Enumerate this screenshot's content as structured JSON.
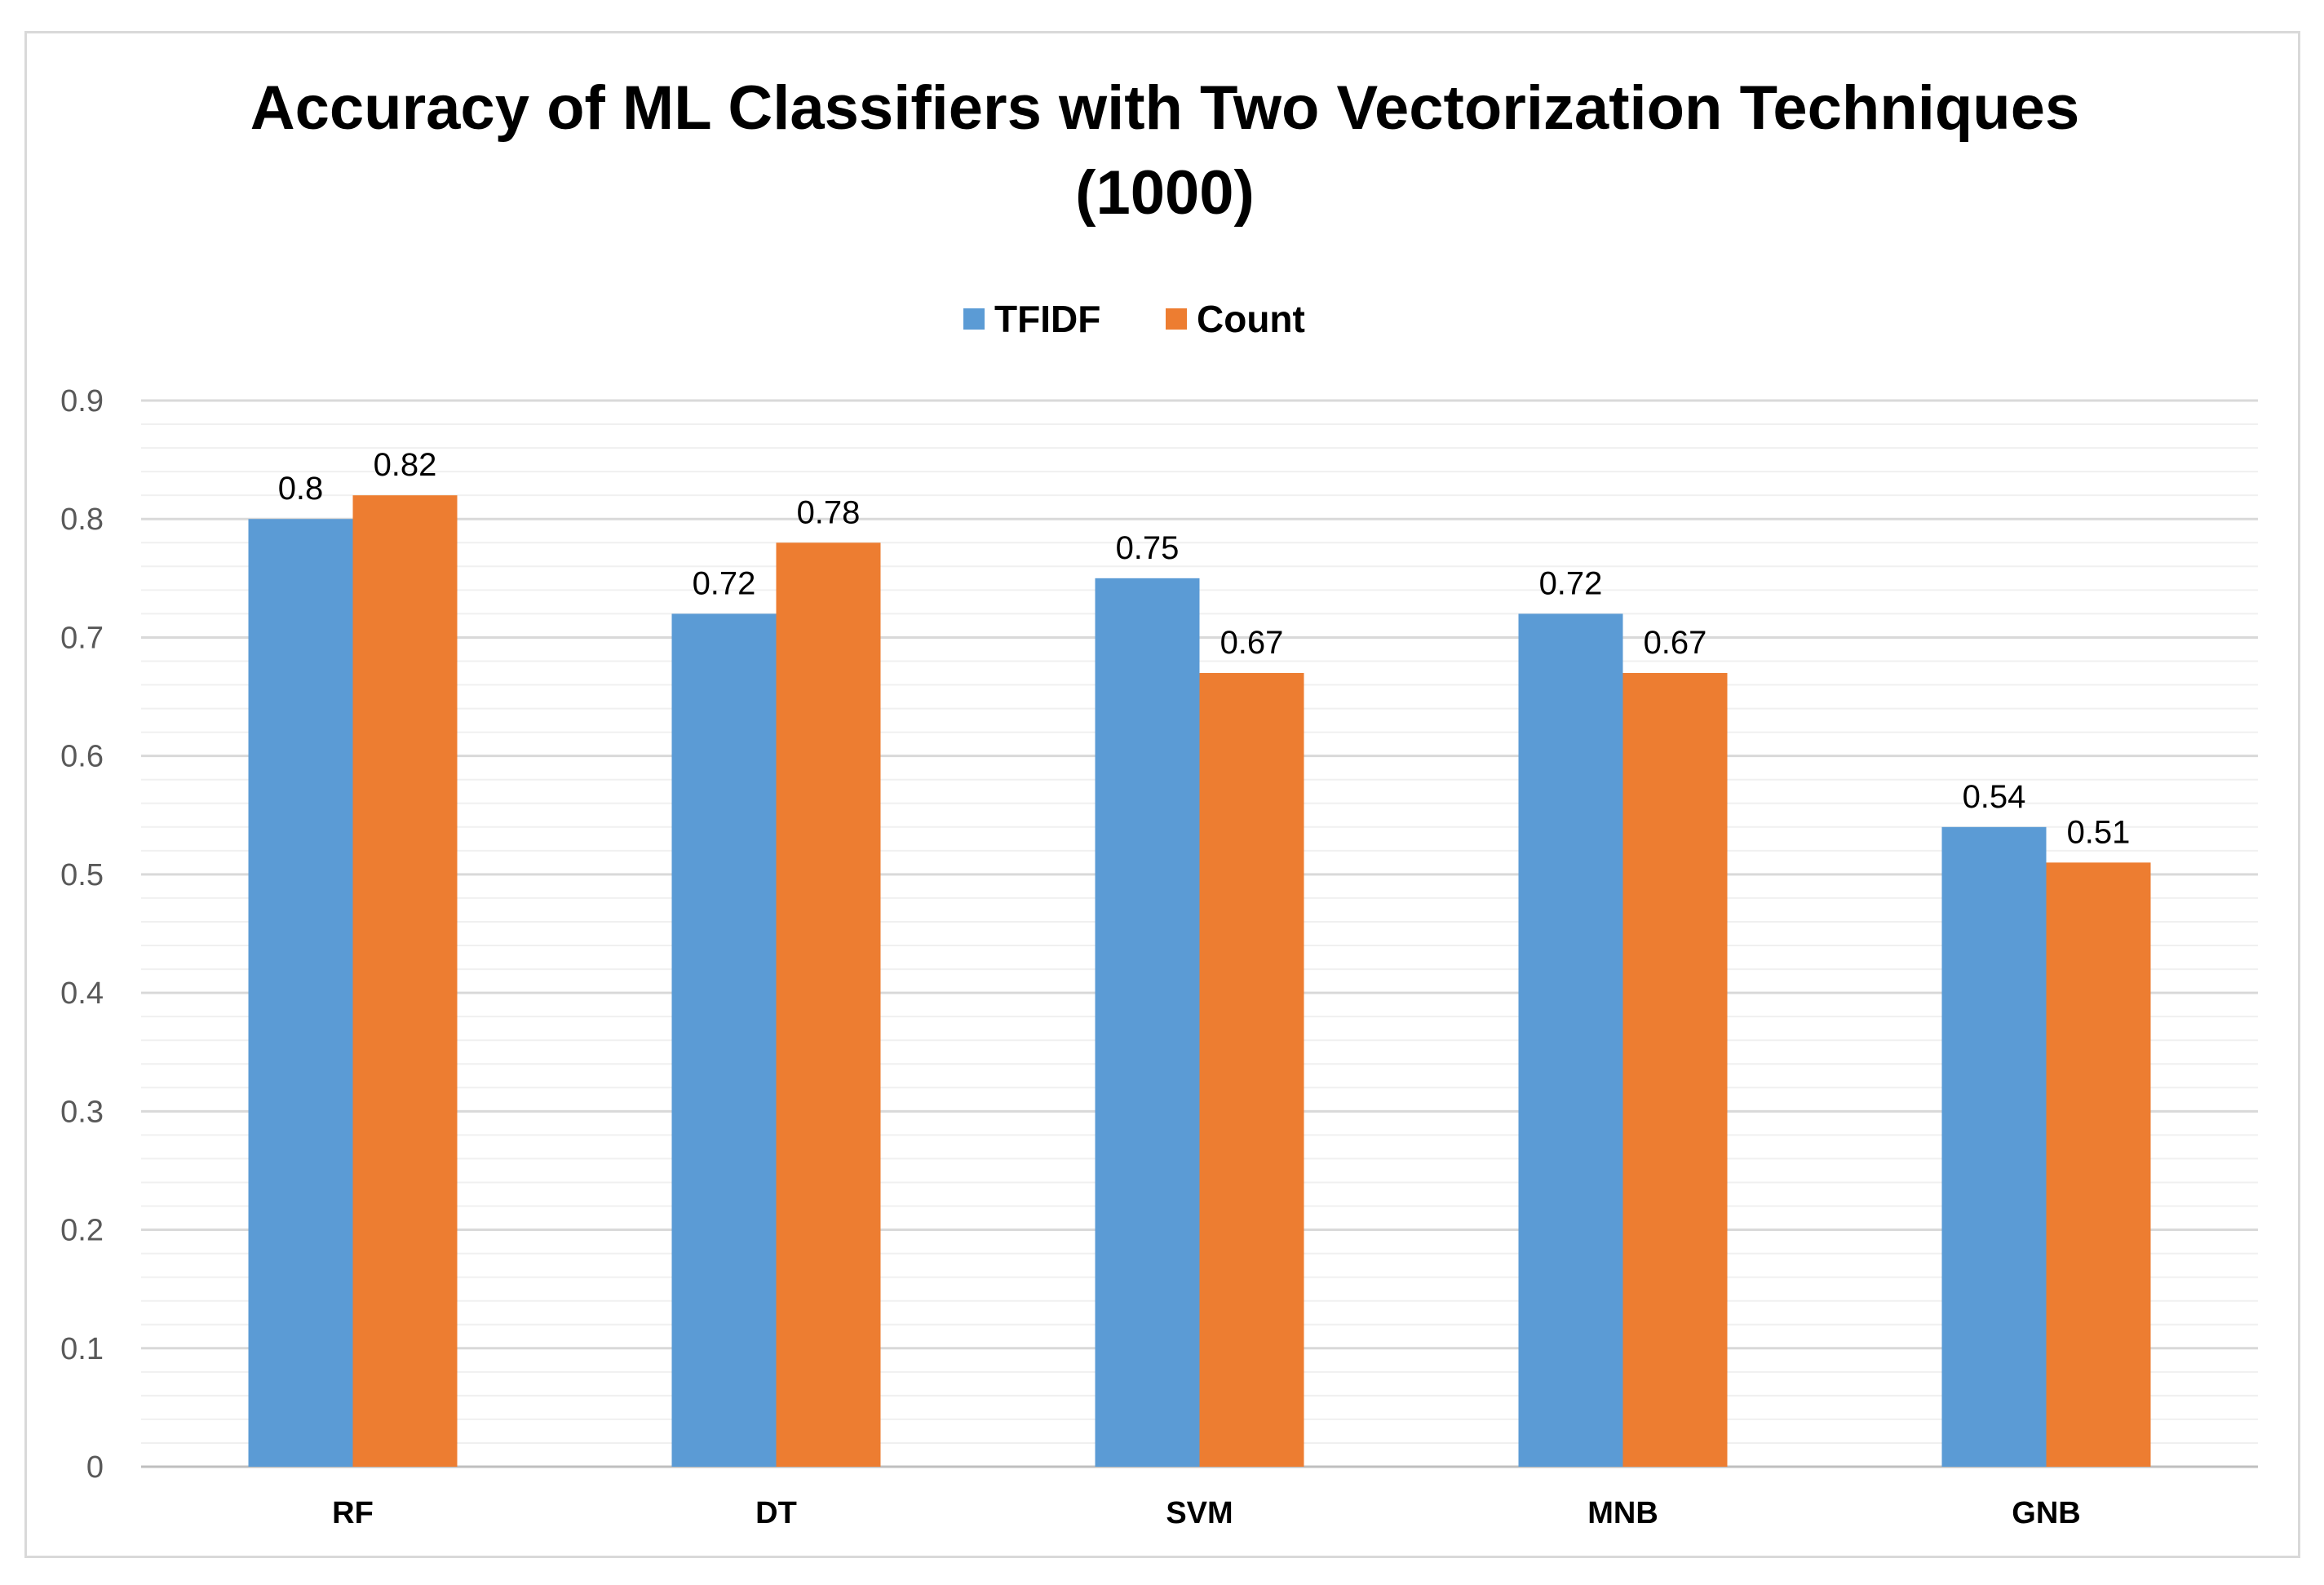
{
  "chart_data": {
    "type": "bar",
    "title_line1": "Accuracy of ML Classifiers with Two Vectorization Techniques",
    "title_line2": "(1000)",
    "categories": [
      "RF",
      "DT",
      "SVM",
      "MNB",
      "GNB"
    ],
    "series": [
      {
        "name": "TFIDF",
        "color": "#5b9bd5",
        "values": [
          0.8,
          0.72,
          0.75,
          0.72,
          0.54
        ]
      },
      {
        "name": "Count",
        "color": "#ed7d31",
        "values": [
          0.82,
          0.78,
          0.67,
          0.67,
          0.51
        ]
      }
    ],
    "value_labels": [
      [
        "0.8",
        "0.72",
        "0.75",
        "0.72",
        "0.54"
      ],
      [
        "0.82",
        "0.78",
        "0.67",
        "0.67",
        "0.51"
      ]
    ],
    "y_ticks": [
      "0",
      "0.1",
      "0.2",
      "0.3",
      "0.4",
      "0.5",
      "0.6",
      "0.7",
      "0.8",
      "0.9"
    ],
    "ylim": [
      0,
      0.9
    ],
    "major_step": 0.1,
    "minor_step": 0.02,
    "xlabel": "",
    "ylabel": "",
    "legend_position": "top-center",
    "grid": true,
    "major_grid_color": "#d9d9d9",
    "minor_grid_color": "#f0f0f0"
  }
}
